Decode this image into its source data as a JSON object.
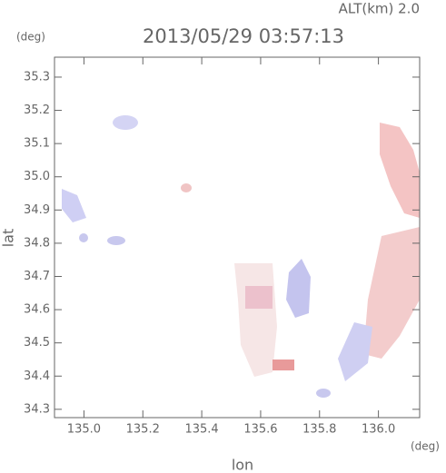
{
  "chart_data": {
    "type": "map",
    "title": "2013/05/29 03:57:13",
    "altitude_label": "ALT(km) 2.0",
    "x_label": "lon",
    "y_label": "lat",
    "x_unit": "(deg)",
    "y_unit": "(deg)",
    "xlim": [
      134.9,
      136.14
    ],
    "ylim": [
      34.275,
      35.36
    ],
    "xticks": [
      {
        "value": 135,
        "label": "135.0"
      },
      135.2,
      135.4,
      135.6,
      135.8,
      {
        "value": 136,
        "label": "136.0"
      }
    ],
    "yticks": [
      34.3,
      34.4,
      34.5,
      34.6,
      34.7,
      34.8,
      34.9,
      {
        "value": 35,
        "label": "35.0"
      },
      35.1,
      35.2,
      35.3
    ]
  }
}
